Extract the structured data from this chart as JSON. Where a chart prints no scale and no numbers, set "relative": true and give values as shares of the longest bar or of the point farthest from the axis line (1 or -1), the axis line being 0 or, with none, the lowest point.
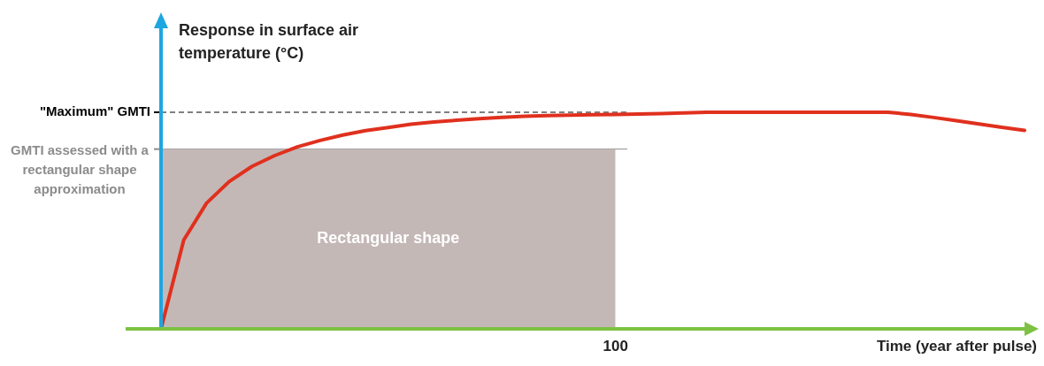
{
  "chart_data": {
    "type": "line",
    "relative": true,
    "xlabel": "Time (year after pulse)",
    "ylabel": "Response in surface air temperature (°C)",
    "grid": false,
    "marker": "none",
    "annotations": [
      "100"
    ],
    "categories": [
      null,
      null,
      null,
      null,
      null,
      null,
      null,
      null,
      null,
      null,
      null,
      null,
      null,
      null,
      null,
      null,
      null,
      null,
      null,
      null,
      null,
      null,
      null,
      null,
      null,
      null,
      null,
      null,
      null,
      null,
      null,
      null,
      null,
      null,
      null,
      null,
      null,
      null,
      null
    ],
    "series": [
      {
        "type": "area",
        "name": "Rectangular shape",
        "color": "#c4b8b6",
        "values": [
          0.83,
          0.83,
          0.83,
          0.83,
          0.83,
          0.83,
          0.83,
          0.83,
          0.83,
          0.83,
          0.83,
          0.83,
          0.83,
          0.83,
          0.83,
          0.83,
          0.83,
          0.83,
          0.83,
          0.83,
          0.83,
          null,
          null,
          null,
          null,
          null,
          null,
          null,
          null,
          null,
          null,
          null,
          null,
          null,
          null,
          null,
          null,
          null,
          null
        ]
      },
      {
        "color": "#e0301e",
        "values": [
          0,
          0.41,
          0.58,
          0.68,
          0.75,
          0.8,
          0.84,
          0.87,
          0.895,
          0.915,
          0.93,
          0.945,
          0.955,
          0.963,
          0.97,
          0.977,
          0.982,
          0.985,
          0.987,
          0.989,
          0.99,
          0.992,
          0.994,
          0.997,
          1,
          1,
          1,
          1,
          1,
          1,
          1,
          1,
          1,
          0.99,
          0.976,
          0.961,
          0.946,
          0.931,
          0.916
        ]
      }
    ],
    "ref_lines": [
      {
        "axis": "y",
        "value": 1,
        "label": "\"Maximum\" GMTI",
        "color": "#000000",
        "line_style": "dashed"
      },
      {
        "axis": "y",
        "value": 0.83,
        "label": "GMTI assessed with a rectangular shape approximation",
        "color": "#8c8c8c"
      }
    ]
  }
}
